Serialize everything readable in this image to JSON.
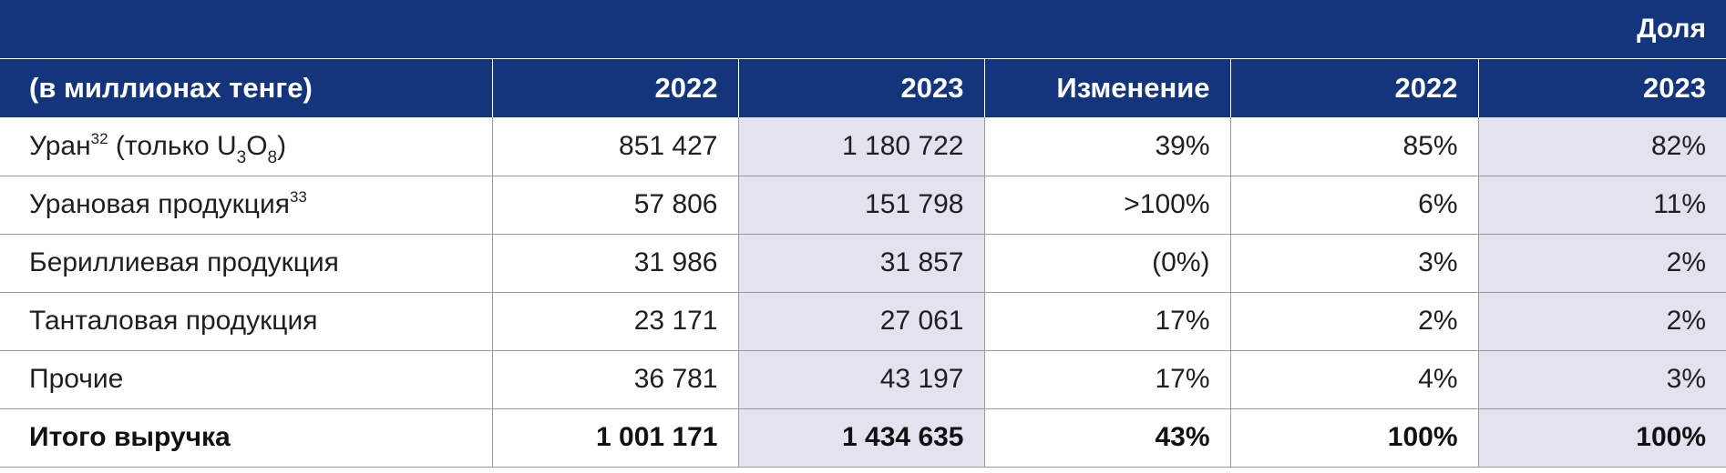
{
  "table": {
    "top_header": {
      "share_label": "Доля"
    },
    "header": {
      "label_col": "(в миллионах тенге)",
      "y2022": "2022",
      "y2023": "2023",
      "change": "Изменение",
      "share_2022": "2022",
      "share_2023": "2023"
    },
    "rows": [
      {
        "label": "Уран",
        "sup": "32",
        "label_tail": "(только U",
        "sub1": "3",
        "mid": "O",
        "sub2": "8",
        "close": ")",
        "v2022": "851 427",
        "v2023": "1 180 722",
        "change": "39%",
        "s2022": "85%",
        "s2023": "82%"
      },
      {
        "label": "Урановая продукция",
        "sup": "33",
        "v2022": "57 806",
        "v2023": "151 798",
        "change": ">100%",
        "s2022": "6%",
        "s2023": "11%"
      },
      {
        "label": "Бериллиевая продукция",
        "v2022": "31 986",
        "v2023": "31 857",
        "change": "(0%)",
        "s2022": "3%",
        "s2023": "2%"
      },
      {
        "label": "Танталовая продукция",
        "v2022": "23 171",
        "v2023": "27 061",
        "change": "17%",
        "s2022": "2%",
        "s2023": "2%"
      },
      {
        "label": "Прочие",
        "v2022": "36 781",
        "v2023": "43 197",
        "change": "17%",
        "s2022": "4%",
        "s2023": "3%"
      },
      {
        "label": "Итого выручка",
        "v2022": "1 001 171",
        "v2023": "1 434 635",
        "change": "43%",
        "s2022": "100%",
        "s2023": "100%"
      }
    ],
    "colors": {
      "header_bg": "#13357c",
      "shade_bg": "#e1e3ef"
    }
  }
}
